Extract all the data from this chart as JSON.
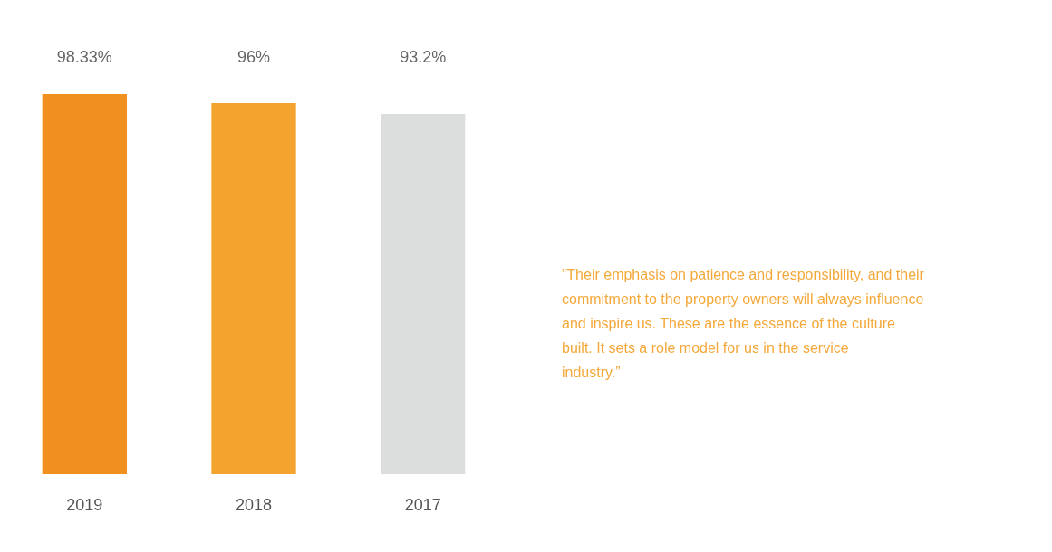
{
  "chart_data": {
    "type": "bar",
    "categories": [
      "2019",
      "2018",
      "2017"
    ],
    "values": [
      98.33,
      96,
      93.2
    ],
    "colors": [
      "#f0901e",
      "#f4a42e",
      "#dcdedd"
    ],
    "value_labels": [
      "98.33%",
      "96%",
      "93.2%"
    ],
    "grid": false,
    "annotations": [
      "“Their emphasis on patience and responsibility, and their commitment to the property owners will always influence and inspire us. These are the essence of the culture built. It sets a role model for us in the service industry.”"
    ]
  }
}
